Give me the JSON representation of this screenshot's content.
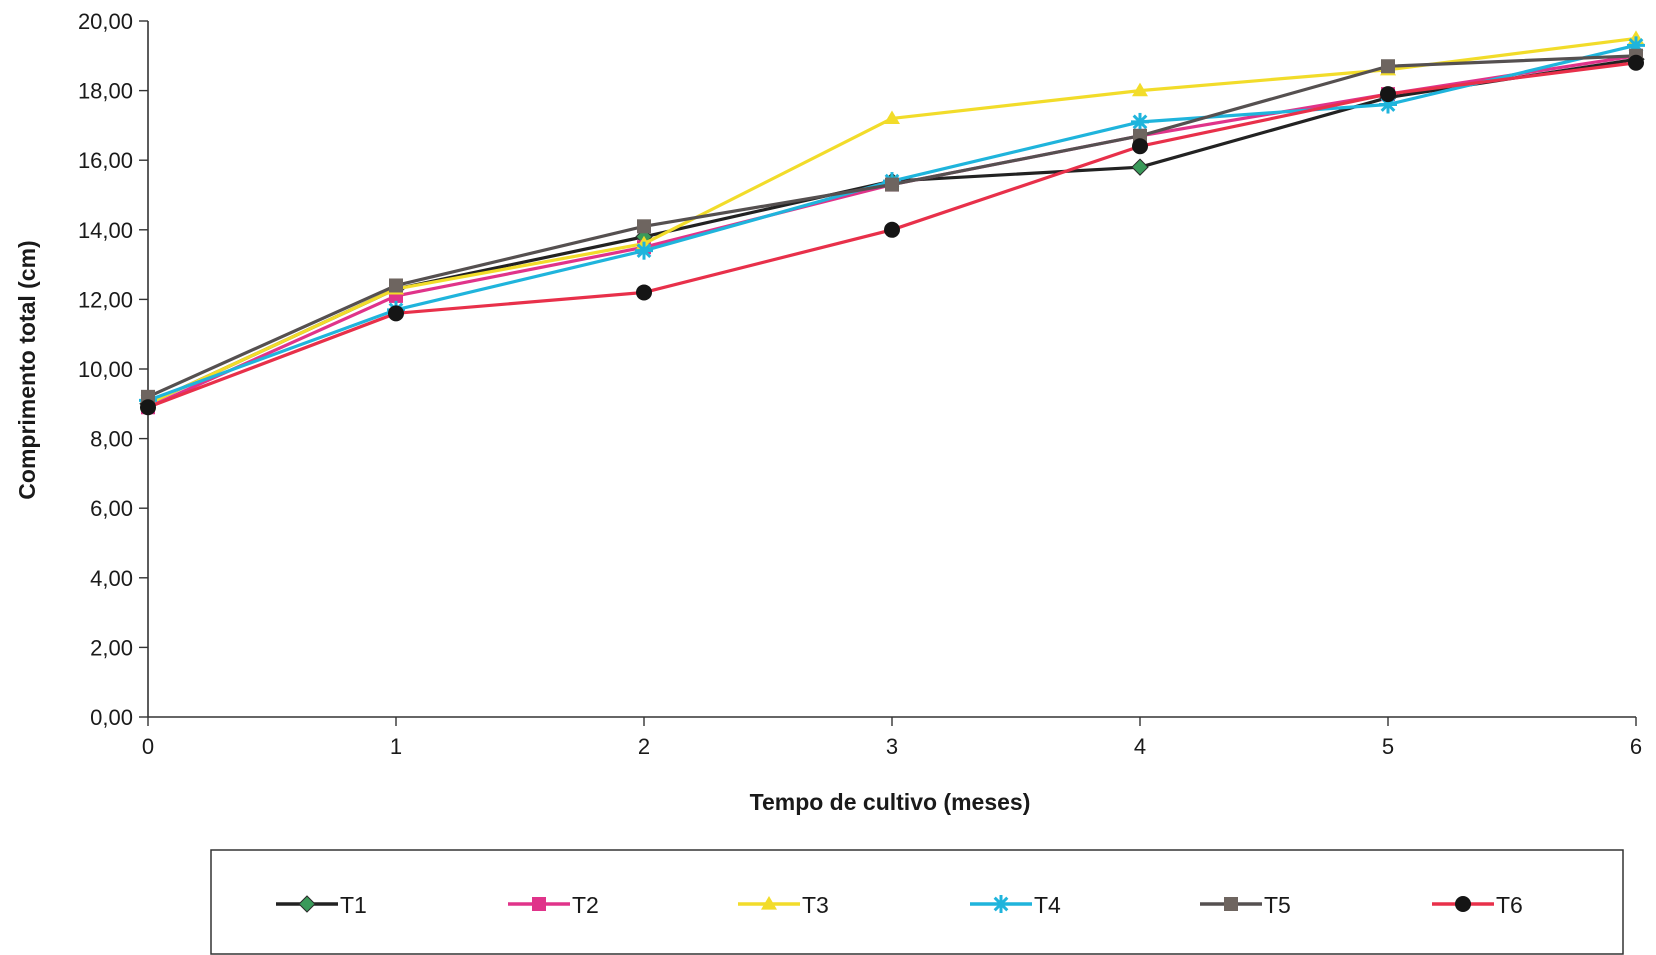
{
  "chart_data": {
    "type": "line",
    "x": [
      0,
      1,
      2,
      3,
      4,
      5,
      6
    ],
    "xlabel": "Tempo de cultivo (meses)",
    "ylabel": "Comprimento total (cm)",
    "xlim": [
      0,
      6
    ],
    "ylim": [
      0,
      20
    ],
    "x_tick_labels": [
      "0",
      "1",
      "2",
      "3",
      "4",
      "5",
      "6"
    ],
    "y_tick_labels": [
      "0,00",
      "2,00",
      "4,00",
      "6,00",
      "8,00",
      "10,00",
      "12,00",
      "14,00",
      "16,00",
      "18,00",
      "20,00"
    ],
    "grid": false,
    "legend_position": "bottom",
    "series": [
      {
        "name": "T1",
        "color": "#222222",
        "marker": "diamond",
        "marker_color": "#3a9a5a",
        "values": [
          9.0,
          12.3,
          13.8,
          15.4,
          15.8,
          17.8,
          18.9
        ]
      },
      {
        "name": "T2",
        "color": "#e0338a",
        "marker": "square",
        "marker_color": "#e0338a",
        "values": [
          8.9,
          12.1,
          13.5,
          15.3,
          16.7,
          17.9,
          19.0
        ]
      },
      {
        "name": "T3",
        "color": "#f2dc2a",
        "marker": "triangle",
        "marker_color": "#f2dc2a",
        "values": [
          9.0,
          12.3,
          13.6,
          17.2,
          18.0,
          18.6,
          19.5
        ]
      },
      {
        "name": "T4",
        "color": "#1fb4dc",
        "marker": "star",
        "marker_color": "#1fb4dc",
        "values": [
          9.1,
          11.7,
          13.4,
          15.4,
          17.1,
          17.6,
          19.3
        ]
      },
      {
        "name": "T5",
        "color": "#555050",
        "marker": "square",
        "marker_color": "#6e6560",
        "values": [
          9.2,
          12.4,
          14.1,
          15.3,
          16.7,
          18.7,
          19.0
        ]
      },
      {
        "name": "T6",
        "color": "#e8304a",
        "marker": "circle",
        "marker_color": "#151515",
        "values": [
          8.9,
          11.6,
          12.2,
          14.0,
          16.4,
          17.9,
          18.8
        ]
      }
    ]
  }
}
